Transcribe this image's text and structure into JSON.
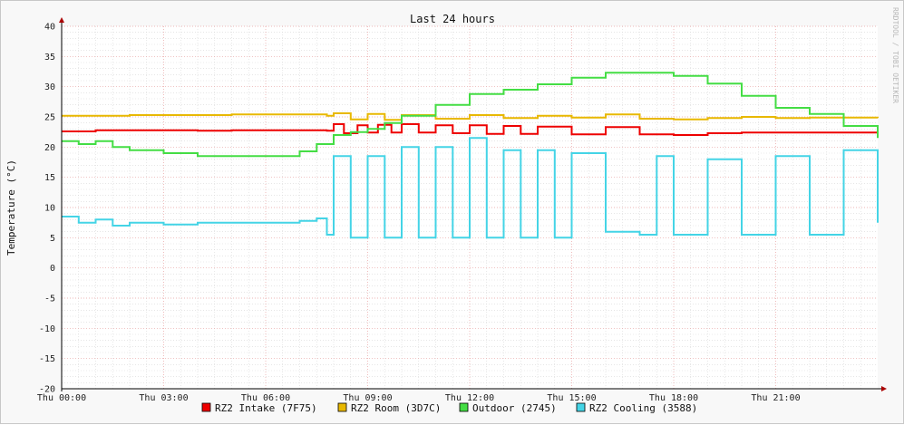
{
  "chart_data": {
    "type": "line",
    "title": "Last 24 hours",
    "ylabel": "Temperature (°C)",
    "xlabel": "",
    "watermark": "RRDTOOL / TOBI OETIKER",
    "ylim": [
      -20,
      40
    ],
    "yticks": [
      40,
      35,
      30,
      25,
      20,
      15,
      10,
      5,
      0,
      -5,
      -10,
      -15,
      -20
    ],
    "xlim": [
      0,
      24
    ],
    "xticks": [
      {
        "hour": 0,
        "label": "Thu 00:00"
      },
      {
        "hour": 3,
        "label": "Thu 03:00"
      },
      {
        "hour": 6,
        "label": "Thu 06:00"
      },
      {
        "hour": 9,
        "label": "Thu 09:00"
      },
      {
        "hour": 12,
        "label": "Thu 12:00"
      },
      {
        "hour": 15,
        "label": "Thu 15:00"
      },
      {
        "hour": 18,
        "label": "Thu 18:00"
      },
      {
        "hour": 21,
        "label": "Thu 21:00"
      }
    ],
    "grid": true,
    "legend_position": "bottom",
    "series": [
      {
        "name": "RZ2 Intake (7F75)",
        "color": "#ee0000",
        "x": [
          0,
          1,
          2,
          3,
          4,
          5,
          6,
          7,
          7.8,
          8.0,
          8.3,
          8.7,
          9.0,
          9.3,
          9.7,
          10.0,
          10.5,
          11.0,
          11.5,
          12.0,
          12.5,
          13.0,
          13.5,
          14.0,
          15.0,
          16.0,
          17.0,
          18.0,
          19.0,
          20.0,
          21.0,
          22.0,
          23.0,
          24.0
        ],
        "y": [
          22.6,
          22.8,
          22.8,
          22.8,
          22.7,
          22.8,
          22.8,
          22.8,
          22.7,
          23.8,
          22.3,
          23.6,
          22.4,
          23.7,
          22.4,
          23.8,
          22.4,
          23.6,
          22.3,
          23.6,
          22.2,
          23.5,
          22.2,
          23.4,
          22.1,
          23.3,
          22.1,
          22.0,
          22.3,
          22.4,
          22.4,
          22.4,
          22.4,
          22.3
        ]
      },
      {
        "name": "RZ2 Room (3D7C)",
        "color": "#e8b800",
        "x": [
          0,
          1,
          2,
          3,
          4,
          5,
          6,
          7,
          7.8,
          8.0,
          8.5,
          9.0,
          9.5,
          10.0,
          11.0,
          12.0,
          13.0,
          14.0,
          15.0,
          16.0,
          17.0,
          18.0,
          19.0,
          20.0,
          21.0,
          22.0,
          23.0,
          24.0
        ],
        "y": [
          25.2,
          25.2,
          25.3,
          25.3,
          25.3,
          25.4,
          25.4,
          25.4,
          25.2,
          25.6,
          24.6,
          25.5,
          24.5,
          25.3,
          24.7,
          25.3,
          24.8,
          25.2,
          24.9,
          25.4,
          24.7,
          24.6,
          24.8,
          25.0,
          24.8,
          24.9,
          24.9,
          24.8
        ]
      },
      {
        "name": "Outdoor (2745)",
        "color": "#44dd44",
        "x": [
          0,
          0.5,
          1.0,
          1.5,
          2.0,
          3.0,
          4.0,
          5.0,
          6.0,
          7.0,
          7.5,
          8.0,
          8.5,
          9.0,
          9.5,
          10.0,
          11.0,
          12.0,
          13.0,
          14.0,
          15.0,
          16.0,
          17.0,
          18.0,
          19.0,
          20.0,
          21.0,
          22.0,
          23.0,
          24.0
        ],
        "y": [
          21.0,
          20.5,
          21.0,
          20.0,
          19.5,
          19.0,
          18.5,
          18.5,
          18.5,
          19.3,
          20.5,
          22.0,
          22.5,
          23.0,
          24.0,
          25.2,
          27.0,
          28.8,
          29.5,
          30.4,
          31.5,
          32.3,
          32.3,
          31.8,
          30.5,
          28.5,
          26.5,
          25.5,
          23.5,
          21.5
        ]
      },
      {
        "name": "RZ2 Cooling (3588)",
        "color": "#44d4e6",
        "x": [
          0,
          0.5,
          1.0,
          1.5,
          2.0,
          3.0,
          4.0,
          5.0,
          6.0,
          7.0,
          7.5,
          7.8,
          8.0,
          8.5,
          9.0,
          9.5,
          10.0,
          10.5,
          11.0,
          11.5,
          12.0,
          12.5,
          13.0,
          13.5,
          14.0,
          14.5,
          15.0,
          16.0,
          17.0,
          17.5,
          18.0,
          19.0,
          20.0,
          21.0,
          22.0,
          23.0,
          24.0
        ],
        "y": [
          8.5,
          7.5,
          8.0,
          7.0,
          7.5,
          7.2,
          7.5,
          7.5,
          7.5,
          7.8,
          8.2,
          5.5,
          18.5,
          5.0,
          18.5,
          5.0,
          20.0,
          5.0,
          20.0,
          5.0,
          21.5,
          5.0,
          19.5,
          5.0,
          19.5,
          5.0,
          19.0,
          6.0,
          5.5,
          18.5,
          5.5,
          18.0,
          5.5,
          18.5,
          5.5,
          19.5,
          7.5
        ]
      }
    ]
  }
}
